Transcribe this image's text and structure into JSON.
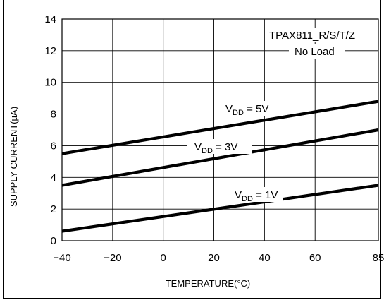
{
  "chart_data": {
    "type": "line",
    "title": "",
    "xlabel": "TEMPERATURE(°C)",
    "ylabel": "SUPPLY CURRENT(μA)",
    "xlim": [
      -40,
      85
    ],
    "ylim": [
      0,
      14
    ],
    "x_ticks": [
      -40,
      -20,
      0,
      20,
      40,
      60,
      85
    ],
    "y_ticks": [
      0,
      2,
      4,
      6,
      8,
      10,
      12,
      14
    ],
    "grid": true,
    "series": [
      {
        "name": "VDD = 5V",
        "label_main": "V",
        "label_sub": "DD",
        "label_tail": " = 5V",
        "x": [
          -40,
          85
        ],
        "y": [
          5.5,
          8.8
        ]
      },
      {
        "name": "VDD = 3V",
        "label_main": "V",
        "label_sub": "DD",
        "label_tail": " = 3V",
        "x": [
          -40,
          85
        ],
        "y": [
          3.5,
          7.0
        ]
      },
      {
        "name": "VDD = 1V",
        "label_main": "V",
        "label_sub": "DD",
        "label_tail": " = 1V",
        "x": [
          -40,
          85
        ],
        "y": [
          0.6,
          3.5
        ]
      }
    ],
    "annotations": [
      "TPAX811_R/S/T/Z",
      "No Load"
    ],
    "line_color": "#000000",
    "grid_color": "#000000"
  }
}
